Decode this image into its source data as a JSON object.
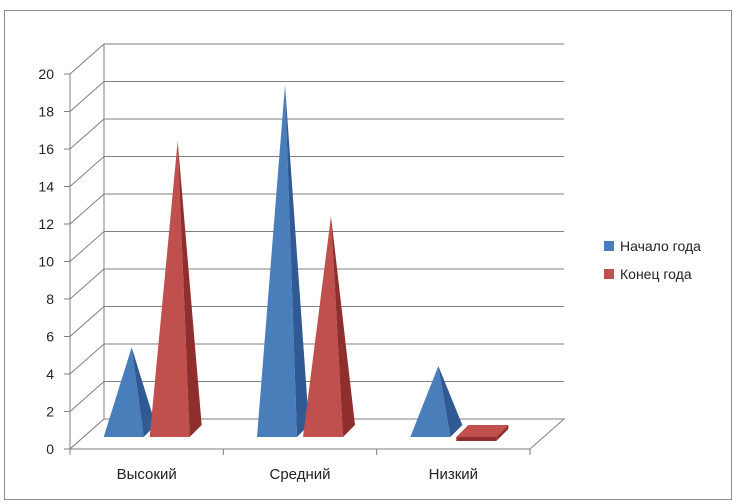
{
  "chart_data": {
    "type": "bar",
    "style": "3d-pyramid",
    "categories": [
      "Высокий",
      "Средний",
      "Низкий"
    ],
    "series": [
      {
        "name": "Начало года",
        "values": [
          5,
          19,
          4
        ],
        "color": "#4a7ebb",
        "dark": "#2f5a94"
      },
      {
        "name": "Конец года",
        "values": [
          16,
          12,
          0
        ],
        "color": "#c0504d",
        "dark": "#8e2f2d"
      }
    ],
    "ylim": [
      0,
      20
    ],
    "yticks": [
      "0",
      "2",
      "4",
      "6",
      "8",
      "10",
      "12",
      "14",
      "16",
      "18",
      "20"
    ],
    "grid": true,
    "legend": "right"
  }
}
